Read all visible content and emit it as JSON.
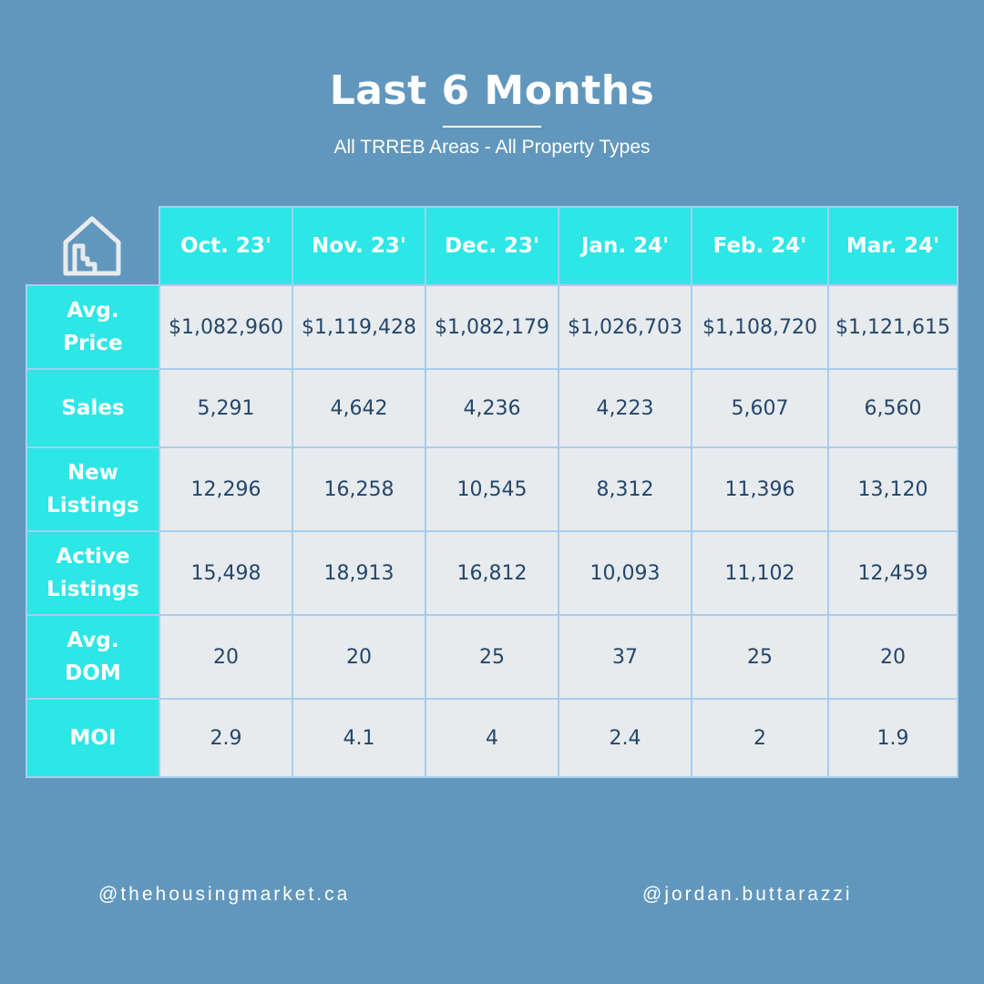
{
  "header": {
    "title": "Last 6 Months",
    "subtitle": "All TRREB Areas - All Property Types"
  },
  "corner_icon": "house-chart-icon",
  "colors": {
    "background": "#6297bd",
    "header_fill": "#2de6e6",
    "cell_fill": "#e7ebee",
    "cell_text": "#24466b",
    "grid_line": "#a8cdef"
  },
  "chart_data": {
    "type": "table",
    "title": "Last 6 Months",
    "subtitle": "All TRREB Areas - All Property Types",
    "columns": [
      "Oct. 23'",
      "Nov. 23'",
      "Dec. 23'",
      "Jan. 24'",
      "Feb. 24'",
      "Mar. 24'"
    ],
    "rows": [
      {
        "label": [
          "Avg.",
          "Price"
        ],
        "values": [
          "$1,082,960",
          "$1,119,428",
          "$1,082,179",
          "$1,026,703",
          "$1,108,720",
          "$1,121,615"
        ]
      },
      {
        "label": [
          "Sales"
        ],
        "values": [
          "5,291",
          "4,642",
          "4,236",
          "4,223",
          "5,607",
          "6,560"
        ]
      },
      {
        "label": [
          "New",
          "Listings"
        ],
        "values": [
          "12,296",
          "16,258",
          "10,545",
          "8,312",
          "11,396",
          "13,120"
        ]
      },
      {
        "label": [
          "Active",
          "Listings"
        ],
        "values": [
          "15,498",
          "18,913",
          "16,812",
          "10,093",
          "11,102",
          "12,459"
        ]
      },
      {
        "label": [
          "Avg.",
          "DOM"
        ],
        "values": [
          "20",
          "20",
          "25",
          "37",
          "25",
          "20"
        ]
      },
      {
        "label": [
          "MOI"
        ],
        "values": [
          "2.9",
          "4.1",
          "4",
          "2.4",
          "2",
          "1.9"
        ]
      }
    ]
  },
  "footer": {
    "left_handle": "@thehousingmarket.ca",
    "right_handle": "@jordan.buttarazzi"
  }
}
